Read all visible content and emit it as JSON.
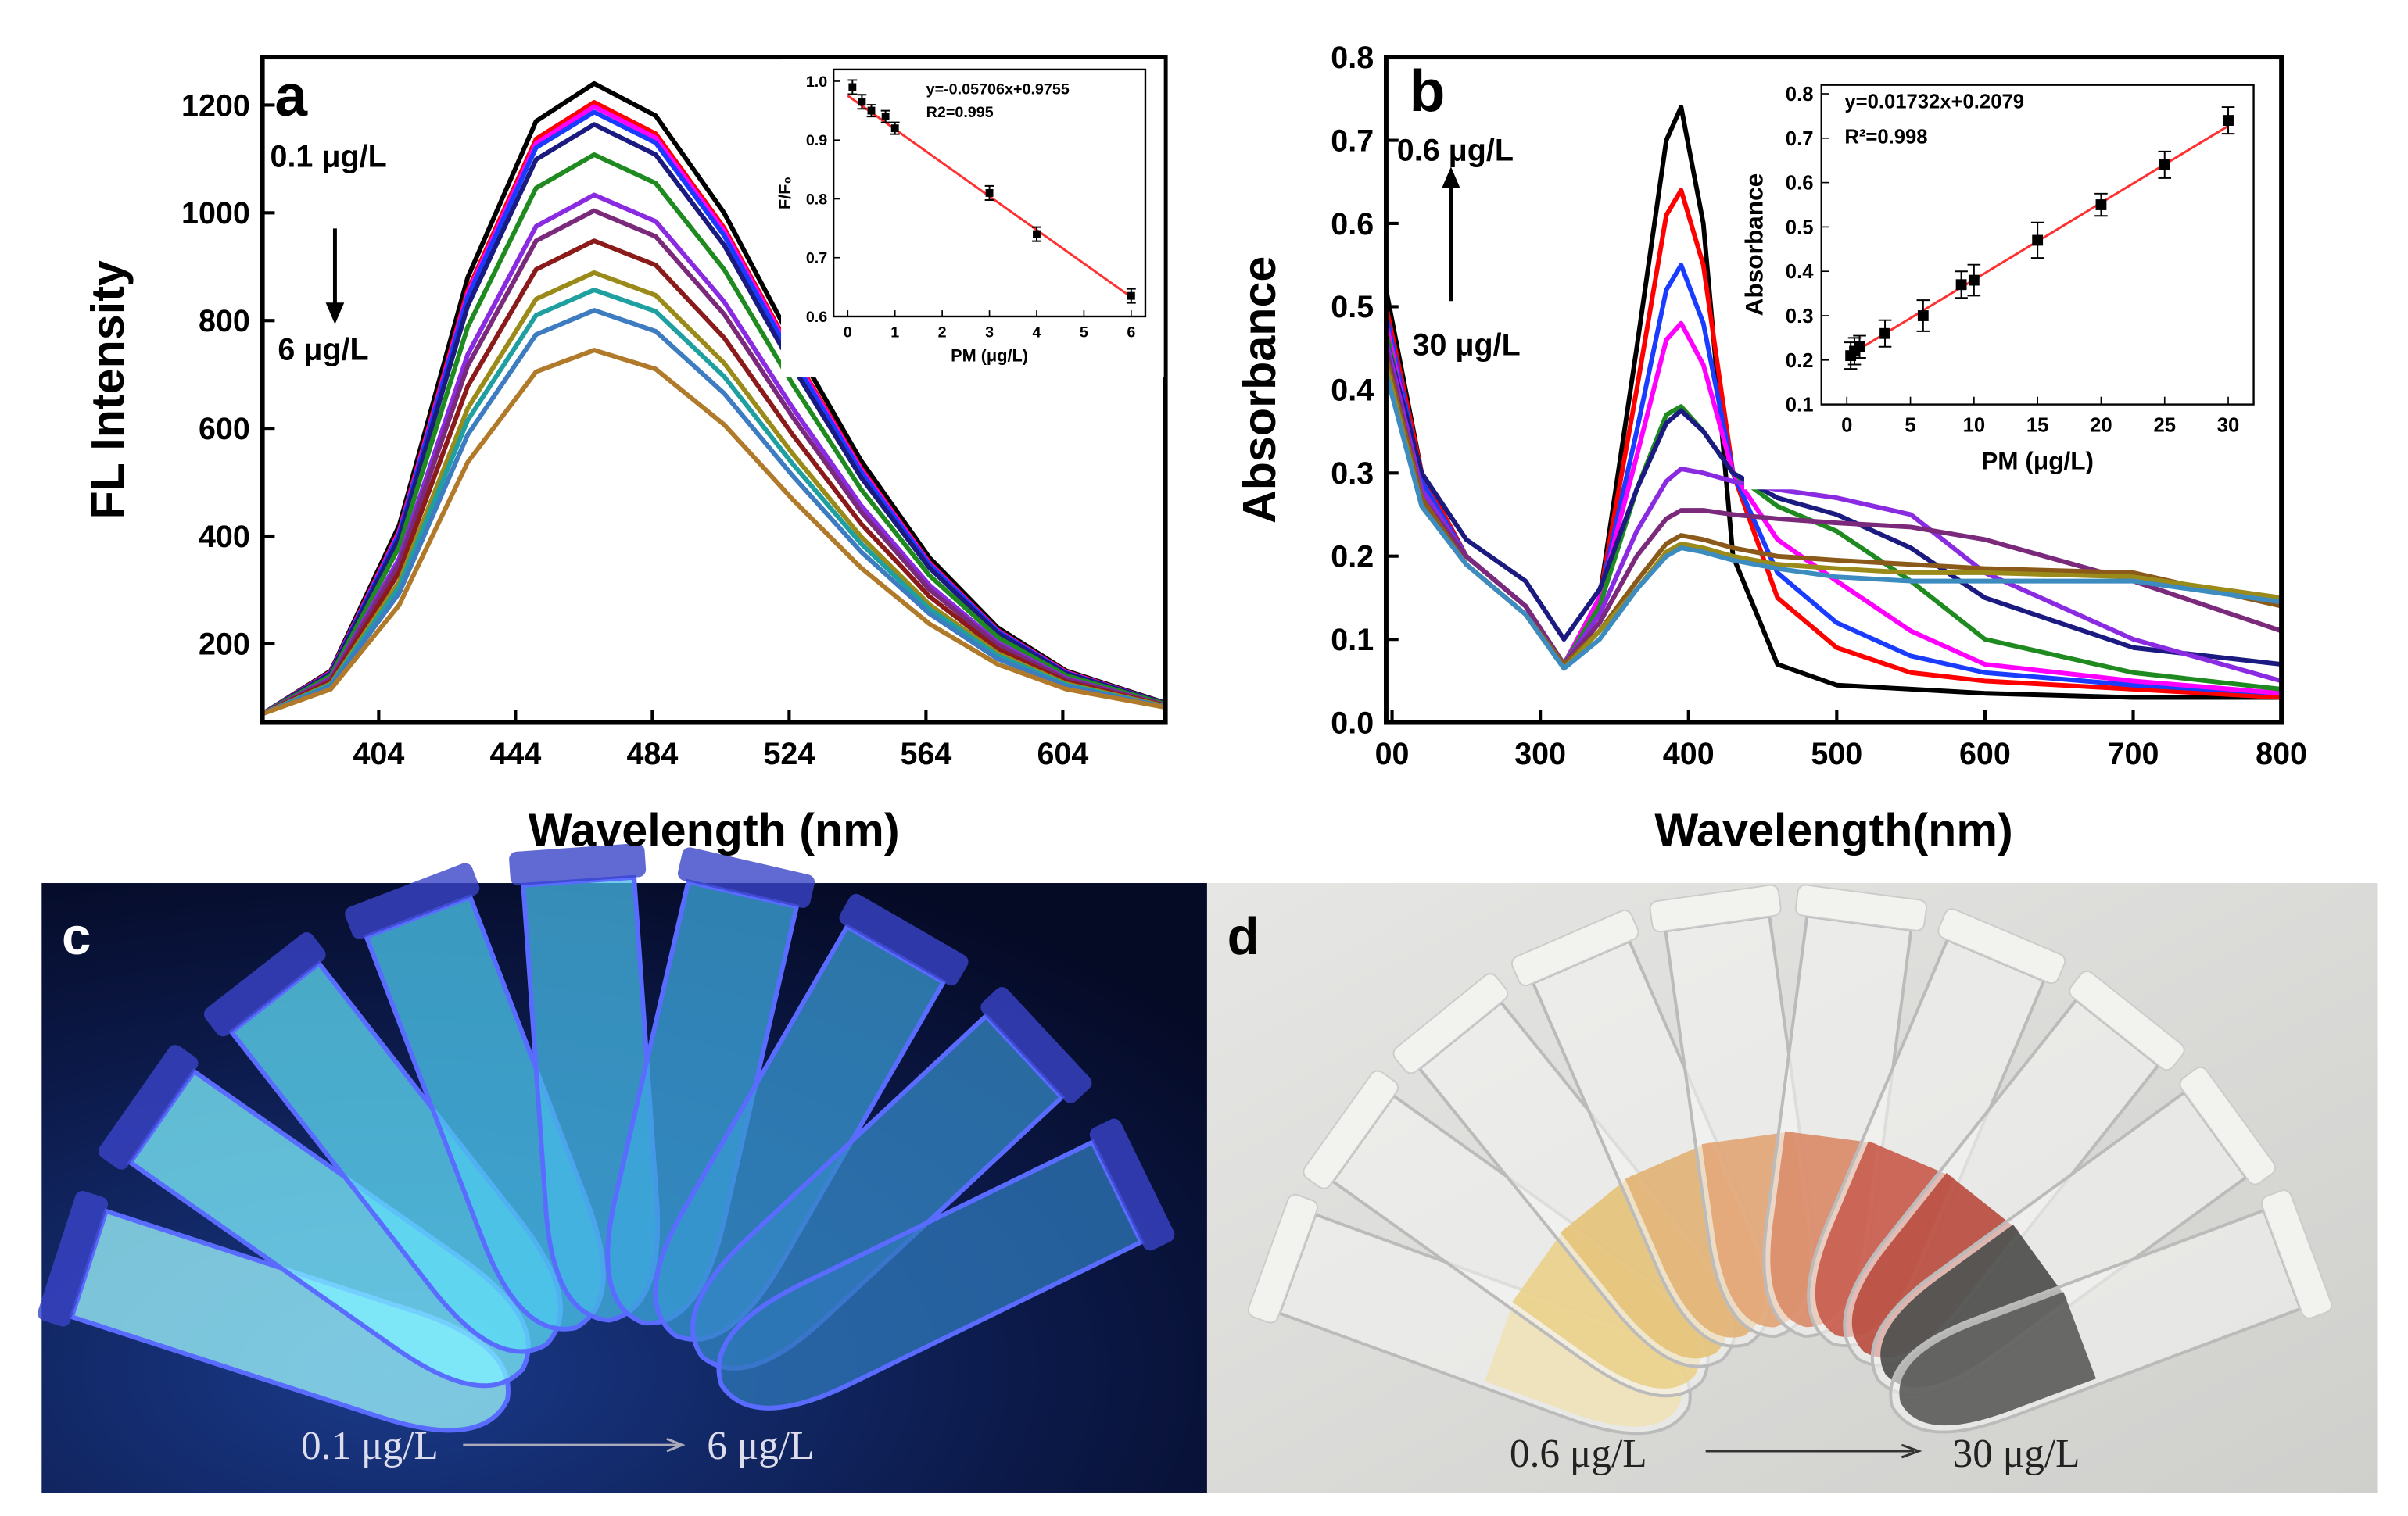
{
  "chart_data": [
    {
      "type": "line",
      "panel": "a",
      "xlabel": "Wavelength (nm)",
      "ylabel": "FL Intensity",
      "annotations": [
        "0.1 μg/L",
        "6 μg/L"
      ],
      "x": [
        370,
        390,
        410,
        430,
        450,
        467,
        485,
        505,
        525,
        545,
        565,
        585,
        605,
        634
      ],
      "xlim": [
        370,
        634
      ],
      "ylim": [
        54,
        1289
      ],
      "xticks": [
        404,
        444,
        484,
        524,
        564,
        604
      ],
      "yticks": [
        200,
        400,
        600,
        800,
        1000,
        1200
      ],
      "series": [
        {
          "color": "#000000",
          "values": [
            70,
            150,
            420,
            880,
            1170,
            1240,
            1180,
            1000,
            760,
            540,
            360,
            230,
            150,
            90
          ]
        },
        {
          "color": "#ff0000",
          "values": [
            70,
            148,
            410,
            856,
            1137,
            1205,
            1147,
            972,
            739,
            526,
            351,
            225,
            148,
            89
          ]
        },
        {
          "color": "#ff00ff",
          "values": [
            70,
            147,
            407,
            850,
            1129,
            1197,
            1139,
            966,
            734,
            523,
            349,
            224,
            147,
            89
          ]
        },
        {
          "color": "#1a3cff",
          "values": [
            70,
            146,
            404,
            844,
            1121,
            1187,
            1130,
            958,
            729,
            519,
            347,
            223,
            146,
            89
          ]
        },
        {
          "color": "#1a1a80",
          "values": [
            70,
            145,
            397,
            827,
            1099,
            1164,
            1108,
            940,
            715,
            509,
            341,
            220,
            145,
            89
          ]
        },
        {
          "color": "#1f8a1f",
          "values": [
            70,
            141,
            380,
            788,
            1046,
            1108,
            1055,
            895,
            682,
            487,
            327,
            212,
            141,
            88
          ]
        },
        {
          "color": "#8a2be2",
          "values": [
            70,
            136,
            358,
            737,
            975,
            1033,
            984,
            835,
            638,
            457,
            309,
            202,
            136,
            86
          ]
        },
        {
          "color": "#7b2a7b",
          "values": [
            70,
            134,
            349,
            716,
            948,
            1004,
            956,
            812,
            621,
            445,
            301,
            198,
            134,
            86
          ]
        },
        {
          "color": "#8b1a1a",
          "values": [
            70,
            130,
            333,
            678,
            895,
            948,
            903,
            768,
            588,
            423,
            288,
            190,
            130,
            85
          ]
        },
        {
          "color": "#9a8a1a",
          "values": [
            70,
            126,
            315,
            637,
            840,
            889,
            847,
            721,
            553,
            399,
            273,
            182,
            126,
            84
          ]
        },
        {
          "color": "#1fa0a0",
          "values": [
            70,
            124,
            306,
            615,
            810,
            857,
            817,
            696,
            534,
            386,
            265,
            178,
            124,
            83
          ]
        },
        {
          "color": "#3d7cc0",
          "values": [
            70,
            121,
            294,
            588,
            774,
            819,
            780,
            665,
            512,
            371,
            256,
            172,
            121,
            83
          ]
        },
        {
          "color": "#b07a2a",
          "values": [
            70,
            116,
            272,
            537,
            705,
            745,
            710,
            607,
            468,
            341,
            237,
            162,
            116,
            82
          ]
        }
      ]
    },
    {
      "type": "scatter",
      "xlabel": "PM (μg/L)",
      "ylabel": "F/F₀",
      "annotations": [
        "y=-0.05706x+0.9755",
        "R2=0.995"
      ],
      "x": [
        0.1,
        0.3,
        0.5,
        0.8,
        1,
        3,
        4,
        6
      ],
      "values": [
        0.99,
        0.965,
        0.95,
        0.94,
        0.92,
        0.81,
        0.74,
        0.635
      ],
      "errors": [
        0.012,
        0.012,
        0.01,
        0.01,
        0.01,
        0.012,
        0.012,
        0.012
      ],
      "fit": {
        "color": "#ff3030",
        "x": [
          0,
          6
        ],
        "values": [
          0.9755,
          0.633
        ]
      },
      "xlim": [
        -0.3,
        6.3
      ],
      "ylim": [
        0.6,
        1.02
      ],
      "xticks": [
        0,
        1,
        2,
        3,
        4,
        5,
        6
      ],
      "yticks": [
        0.6,
        0.7,
        0.8,
        0.9,
        {
          "value": 1.0,
          "label": "1.0"
        }
      ]
    },
    {
      "type": "line",
      "panel": "b",
      "xlabel": "Wavelength(nm)",
      "ylabel": "Absorbance",
      "annotations": [
        "0.6 μg/L",
        "30 μg/L"
      ],
      "x": [
        196,
        220,
        250,
        290,
        316,
        340,
        365,
        385,
        395,
        410,
        430,
        460,
        500,
        550,
        600,
        700,
        800
      ],
      "xlim": [
        196,
        800
      ],
      "ylim": [
        0,
        0.8
      ],
      "xticks": [
        {
          "value": 200,
          "label": "00"
        },
        300,
        400,
        500,
        600,
        700,
        800
      ],
      "yticks": [
        {
          "value": 0,
          "label": "0.0"
        },
        0.1,
        0.2,
        0.3,
        0.4,
        0.5,
        0.6,
        0.7,
        0.8
      ],
      "series": [
        {
          "color": "#000000",
          "values": [
            0.52,
            0.3,
            0.2,
            0.14,
            0.07,
            0.15,
            0.45,
            0.7,
            0.74,
            0.6,
            0.2,
            0.07,
            0.045,
            0.04,
            0.035,
            0.03,
            0.03
          ]
        },
        {
          "color": "#ff0000",
          "values": [
            0.5,
            0.3,
            0.2,
            0.14,
            0.07,
            0.15,
            0.4,
            0.61,
            0.64,
            0.55,
            0.3,
            0.15,
            0.09,
            0.06,
            0.05,
            0.04,
            0.03
          ]
        },
        {
          "color": "#1a3cff",
          "values": [
            0.49,
            0.29,
            0.2,
            0.14,
            0.07,
            0.15,
            0.35,
            0.52,
            0.55,
            0.48,
            0.3,
            0.18,
            0.12,
            0.08,
            0.06,
            0.045,
            0.035
          ]
        },
        {
          "color": "#ff00ff",
          "values": [
            0.48,
            0.28,
            0.2,
            0.14,
            0.07,
            0.15,
            0.32,
            0.46,
            0.48,
            0.43,
            0.3,
            0.22,
            0.17,
            0.11,
            0.07,
            0.05,
            0.035
          ]
        },
        {
          "color": "#1f8a1f",
          "values": [
            0.47,
            0.28,
            0.2,
            0.14,
            0.07,
            0.14,
            0.28,
            0.37,
            0.38,
            0.35,
            0.3,
            0.26,
            0.23,
            0.17,
            0.1,
            0.06,
            0.04
          ]
        },
        {
          "color": "#1a1a80",
          "values": [
            0.46,
            0.3,
            0.22,
            0.17,
            0.1,
            0.16,
            0.28,
            0.36,
            0.375,
            0.35,
            0.3,
            0.27,
            0.25,
            0.21,
            0.15,
            0.09,
            0.07
          ]
        },
        {
          "color": "#8a2be2",
          "values": [
            0.46,
            0.28,
            0.2,
            0.14,
            0.07,
            0.13,
            0.23,
            0.29,
            0.305,
            0.3,
            0.29,
            0.28,
            0.27,
            0.25,
            0.18,
            0.1,
            0.05
          ]
        },
        {
          "color": "#7b2a7b",
          "values": [
            0.45,
            0.27,
            0.2,
            0.14,
            0.07,
            0.12,
            0.2,
            0.245,
            0.255,
            0.255,
            0.25,
            0.245,
            0.24,
            0.235,
            0.22,
            0.17,
            0.11
          ]
        },
        {
          "color": "#8b5a1a",
          "values": [
            0.44,
            0.27,
            0.19,
            0.13,
            0.07,
            0.11,
            0.17,
            0.215,
            0.225,
            0.22,
            0.21,
            0.2,
            0.195,
            0.19,
            0.185,
            0.18,
            0.14
          ]
        },
        {
          "color": "#9a8a1a",
          "values": [
            0.43,
            0.26,
            0.19,
            0.13,
            0.065,
            0.11,
            0.16,
            0.205,
            0.215,
            0.21,
            0.2,
            0.19,
            0.185,
            0.18,
            0.18,
            0.175,
            0.15
          ]
        },
        {
          "color": "#3d8cc0",
          "values": [
            0.42,
            0.26,
            0.19,
            0.13,
            0.065,
            0.1,
            0.16,
            0.2,
            0.21,
            0.205,
            0.195,
            0.185,
            0.175,
            0.17,
            0.17,
            0.17,
            0.145
          ]
        }
      ]
    },
    {
      "type": "scatter",
      "xlabel": "PM (μg/L)",
      "ylabel": "Absorbance",
      "annotations": [
        "y=0.01732x+0.2079",
        "R²=0.998"
      ],
      "x": [
        0.3,
        0.6,
        1,
        3,
        6,
        9,
        10,
        15,
        20,
        25,
        30
      ],
      "values": [
        0.21,
        0.22,
        0.23,
        0.26,
        0.3,
        0.37,
        0.38,
        0.47,
        0.55,
        0.64,
        0.74
      ],
      "errors": [
        0.03,
        0.03,
        0.025,
        0.03,
        0.035,
        0.03,
        0.035,
        0.04,
        0.025,
        0.03,
        0.03
      ],
      "fit": {
        "color": "#ff3030",
        "x": [
          0,
          30
        ],
        "values": [
          0.2079,
          0.7275
        ]
      },
      "xlim": [
        -2,
        32
      ],
      "ylim": [
        0.1,
        0.82
      ],
      "xticks": [
        0,
        5,
        10,
        15,
        20,
        25,
        30
      ],
      "yticks": [
        0.1,
        0.2,
        0.3,
        0.4,
        0.5,
        0.6,
        0.7,
        0.8
      ]
    }
  ],
  "photos": [
    {
      "label": "c",
      "from": "0.1 μg/L",
      "to": "6 μg/L"
    },
    {
      "label": "d",
      "from": "0.6 μg/L",
      "to": "30 μg/L"
    }
  ]
}
